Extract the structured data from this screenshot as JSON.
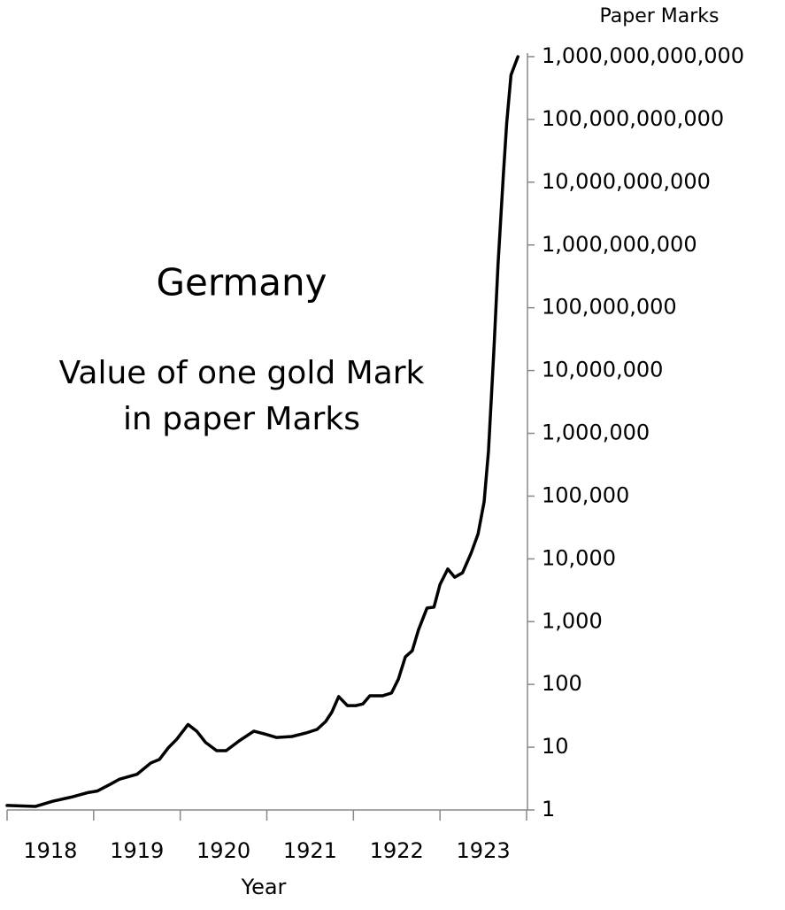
{
  "chart_data": {
    "type": "line",
    "title": "Germany",
    "subtitle": [
      "Value of one gold Mark",
      "in paper Marks"
    ],
    "x_label": "Year",
    "y_label": "Paper Marks",
    "log_scale_y": true,
    "y_axis_side": "right",
    "color": "#000000",
    "x": [
      1918.0,
      1918.33,
      1918.53,
      1918.74,
      1918.94,
      1919.04,
      1919.2,
      1919.3,
      1919.5,
      1919.66,
      1919.76,
      1919.86,
      1919.96,
      1920.09,
      1920.19,
      1920.29,
      1920.42,
      1920.53,
      1920.68,
      1920.85,
      1920.99,
      1921.11,
      1921.29,
      1921.45,
      1921.58,
      1921.68,
      1921.75,
      1921.83,
      1921.93,
      1922.03,
      1922.11,
      1922.19,
      1922.34,
      1922.44,
      1922.52,
      1922.6,
      1922.68,
      1922.75,
      1922.85,
      1922.93,
      1923.0,
      1923.09,
      1923.17,
      1923.26,
      1923.36,
      1923.44,
      1923.51,
      1923.56,
      1923.62,
      1923.67,
      1923.73,
      1923.77,
      1923.82,
      1923.9
    ],
    "values": [
      1.18,
      1.14,
      1.38,
      1.6,
      1.9,
      2.0,
      2.6,
      3.1,
      3.7,
      5.6,
      6.4,
      9.7,
      13.4,
      23,
      18,
      12,
      8.8,
      8.8,
      12.6,
      18,
      16,
      14.3,
      14.8,
      16.8,
      19.2,
      25.7,
      36,
      64,
      46,
      46,
      49,
      66,
      66,
      73,
      122,
      275,
      345,
      730,
      1650,
      1700,
      3900,
      6900,
      5100,
      6000,
      12400,
      25000,
      82000,
      520000,
      18000000,
      480000000,
      12000000000,
      86000000000,
      510000000000,
      1000000000000
    ],
    "xlim": [
      1918,
      1924
    ],
    "xticks": [
      {
        "value": 1918.5,
        "label": "1918"
      },
      {
        "value": 1919.5,
        "label": "1919"
      },
      {
        "value": 1920.5,
        "label": "1920"
      },
      {
        "value": 1921.5,
        "label": "1921"
      },
      {
        "value": 1922.5,
        "label": "1922"
      },
      {
        "value": 1923.5,
        "label": "1923"
      }
    ],
    "ylim": [
      1,
      1000000000000
    ],
    "yticks": [
      1,
      10,
      100,
      {
        "value": 1000,
        "label": "1,000"
      },
      {
        "value": 10000,
        "label": "10,000"
      },
      {
        "value": 100000,
        "label": "100,000"
      },
      {
        "value": 1000000,
        "label": "1,000,000"
      },
      {
        "value": 10000000,
        "label": "10,000,000"
      },
      {
        "value": 100000000,
        "label": "100,000,000"
      },
      {
        "value": 1000000000,
        "label": "1,000,000,000"
      },
      {
        "value": 10000000000,
        "label": "10,000,000,000"
      },
      {
        "value": 100000000000,
        "label": "100,000,000,000"
      },
      {
        "value": 1000000000000,
        "label": "1,000,000,000,000"
      }
    ],
    "grid": false
  }
}
